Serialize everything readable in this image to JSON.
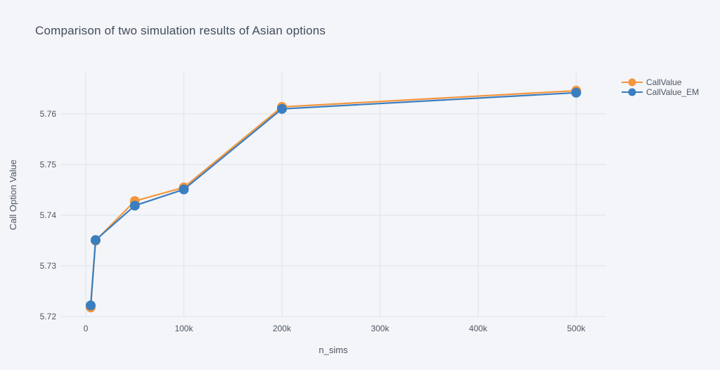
{
  "title": "Comparison of two simulation results of Asian options",
  "colors": {
    "background": "#f3f5f9",
    "grid": "#e2e6ee",
    "tick_text": "#4d5663",
    "title_text": "#424c5c",
    "series_orange": "#f5953d",
    "series_blue": "#3a7ebf"
  },
  "legend": {
    "items": [
      {
        "label": "CallValue",
        "color": "#f5953d"
      },
      {
        "label": "CallValue_EM",
        "color": "#3a7ebf"
      }
    ]
  },
  "chart_data": {
    "type": "line",
    "title": "Comparison of two simulation results of Asian options",
    "xlabel": "n_sims",
    "ylabel": "Call Option Value",
    "x": [
      5000,
      10000,
      50000,
      100000,
      200000,
      500000
    ],
    "series": [
      {
        "name": "CallValue",
        "color": "#f5953d",
        "values": [
          5.7218,
          5.735,
          5.7428,
          5.7455,
          5.7614,
          5.7646
        ]
      },
      {
        "name": "CallValue_EM",
        "color": "#3a7ebf",
        "values": [
          5.7222,
          5.7351,
          5.7419,
          5.7451,
          5.761,
          5.7642
        ]
      }
    ],
    "xticks": {
      "values": [
        0,
        100000,
        200000,
        300000,
        400000,
        500000
      ],
      "labels": [
        "0",
        "100k",
        "200k",
        "300k",
        "400k",
        "500k"
      ]
    },
    "yticks": {
      "values": [
        5.72,
        5.73,
        5.74,
        5.75,
        5.76
      ],
      "labels": [
        "5.72",
        "5.73",
        "5.74",
        "5.75",
        "5.76"
      ]
    },
    "xlim": [
      -25800,
      530500
    ],
    "ylim": [
      5.72,
      5.7682
    ],
    "grid": true,
    "legend_position": "right",
    "marker_size": 7,
    "line_width": 2.2
  }
}
